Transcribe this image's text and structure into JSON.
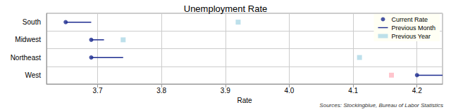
{
  "chart_data": {
    "type": "dot",
    "title": "Unemployment Rate",
    "x_label": "Rate",
    "source": "Sources: Stockingblue, Bureau of Labor Statistics",
    "orientation": "horizontal",
    "categories": [
      "South",
      "Midwest",
      "Northeast",
      "West"
    ],
    "series": [
      {
        "name": "Current Rate",
        "type": "scatter",
        "marker": "circle",
        "color": "#1c2b8f",
        "values": [
          3.65,
          3.69,
          3.69,
          4.2
        ]
      },
      {
        "name": "Previous Month",
        "type": "line",
        "line_style": "solid",
        "color": "#1c2b8f",
        "values": [
          3.69,
          3.71,
          3.74,
          4.24
        ]
      },
      {
        "name": "Previous Year",
        "type": "scatter",
        "marker": "square",
        "colors": [
          "#add8e6",
          "#add8e6",
          "#add8e6",
          "#ffb6c1"
        ],
        "values": [
          3.92,
          3.74,
          4.11,
          4.16
        ]
      }
    ],
    "xlim": [
      3.62,
      4.24
    ],
    "xticks": [
      3.7,
      3.8,
      3.9,
      {
        "value": 4,
        "label": "4.0"
      },
      4.1,
      4.2
    ],
    "grid": true,
    "legend": "upper right"
  }
}
